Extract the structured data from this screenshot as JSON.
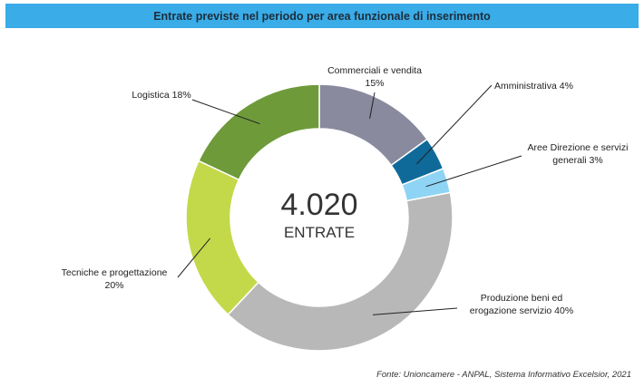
{
  "header": {
    "title": "Entrate previste nel periodo per area funzionale di inserimento"
  },
  "center": {
    "value": "4.020",
    "label": "ENTRATE"
  },
  "source": "Fonte: Unioncamere - ANPAL, Sistema Informativo Excelsior, 2021",
  "chart_data": {
    "type": "pie",
    "donut": true,
    "title": "Entrate previste nel periodo per area funzionale di inserimento",
    "slices": [
      {
        "name": "Commerciali e vendita",
        "value": 15,
        "color": "#8a8a9e",
        "label_lines": [
          "Commerciali e vendita",
          "15%"
        ]
      },
      {
        "name": "Amministrativa",
        "value": 4,
        "color": "#0f6a9a",
        "label_lines": [
          "Amministrativa 4%"
        ]
      },
      {
        "name": "Aree Direzione e servizi generali",
        "value": 3,
        "color": "#8fd4f4",
        "label_lines": [
          "Aree Direzione e servizi",
          "generali 3%"
        ]
      },
      {
        "name": "Produzione beni ed erogazione servizio",
        "value": 40,
        "color": "#b8b8b8",
        "label_lines": [
          "Produzione beni ed",
          "erogazione servizio 40%"
        ]
      },
      {
        "name": "Tecniche e progettazione",
        "value": 20,
        "color": "#c4d94a",
        "label_lines": [
          "Tecniche e progettazione",
          "20%"
        ]
      },
      {
        "name": "Logistica",
        "value": 18,
        "color": "#6e9a3a",
        "label_lines": [
          "Logistica 18%"
        ]
      }
    ]
  }
}
